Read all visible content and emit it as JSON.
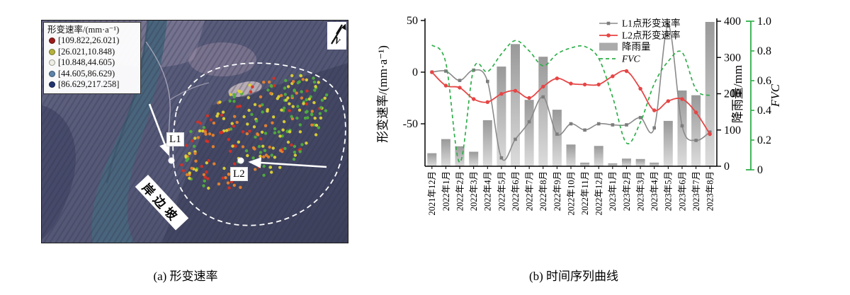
{
  "captions": {
    "a": "(a) 形变速率",
    "b": "(b) 时间序列曲线"
  },
  "map": {
    "legend": {
      "title": "形变速率/(mm·a⁻¹)",
      "items": [
        {
          "color": "#9b1b1b",
          "label": "[109.822,26.021)"
        },
        {
          "color": "#b5b23c",
          "label": "[26.021,10.848)"
        },
        {
          "color": "#efeee4",
          "label": "[10.848,44.605)"
        },
        {
          "color": "#5c83a9",
          "label": "[44.605,86.629)"
        },
        {
          "color": "#1f336e",
          "label": "[86.629,217.258]"
        }
      ]
    },
    "labels": {
      "l1": "L1",
      "l2": "L2",
      "slope": "岸边坡"
    },
    "north_letter": "N",
    "dot_colors": [
      "#d53125",
      "#e8832c",
      "#ddd335",
      "#4fae3c"
    ],
    "dot_count": 275
  },
  "chart_data": {
    "type": "combo",
    "title": "",
    "categories": [
      "2021年12月",
      "2022年1月",
      "2022年2月",
      "2022年3月",
      "2022年4月",
      "2022年5月",
      "2022年6月",
      "2022年7月",
      "2022年8月",
      "2022年9月",
      "2022年10月",
      "2022年11月",
      "2022年12月",
      "2023年1月",
      "2023年2月",
      "2023年3月",
      "2023年4月",
      "2023年5月",
      "2023年6月",
      "2023年7月",
      "2023年8月"
    ],
    "series": [
      {
        "name": "L1点形变速率",
        "type": "line",
        "axis": "deformation",
        "color": "#8a8a8a",
        "values": [
          0,
          1,
          -8,
          2,
          -9,
          -83,
          -65,
          -48,
          -24,
          -60,
          -50,
          -56,
          -50,
          -51,
          -51,
          -44,
          -54,
          45,
          -52,
          -66,
          -58
        ]
      },
      {
        "name": "L2点形变速率",
        "type": "line",
        "axis": "deformation",
        "color": "#e64545",
        "values": [
          0,
          -13,
          -15,
          -26,
          -29,
          -21,
          -18,
          -25,
          -14,
          -6,
          -11,
          -12,
          -12,
          -4,
          1,
          -16,
          -37,
          -28,
          -26,
          -39,
          -60
        ]
      },
      {
        "name": "降雨量",
        "type": "bar",
        "axis": "rain",
        "color": "#b0b0b0",
        "values": [
          36,
          75,
          55,
          40,
          127,
          275,
          337,
          183,
          302,
          156,
          60,
          10,
          56,
          8,
          21,
          20,
          10,
          125,
          209,
          196,
          398
        ]
      },
      {
        "name": "FVC",
        "type": "line-dashed",
        "axis": "fvc",
        "color": "#2fae4a",
        "values": [
          0.84,
          0.72,
          0.05,
          0.68,
          0.66,
          0.78,
          0.87,
          0.8,
          0.7,
          0.78,
          0.82,
          0.83,
          0.75,
          0.49,
          0.18,
          0.32,
          0.58,
          0.73,
          0.79,
          0.54,
          0.5
        ]
      }
    ],
    "axes": {
      "left": {
        "label": "形变速率/(mm·a⁻¹)",
        "ticks": [
          50,
          0,
          -50
        ],
        "range": [
          -91,
          50
        ]
      },
      "rain": {
        "label": "降雨量/mm",
        "ticks": [
          0,
          100,
          200,
          300,
          400
        ],
        "range": [
          0,
          400
        ]
      },
      "fvc": {
        "label": "FVC",
        "ticks": [
          0,
          0.2,
          0.4,
          0.6,
          0.8,
          1.0
        ],
        "range": [
          0,
          1
        ]
      }
    },
    "legend_position": "top-right",
    "grid": false
  }
}
